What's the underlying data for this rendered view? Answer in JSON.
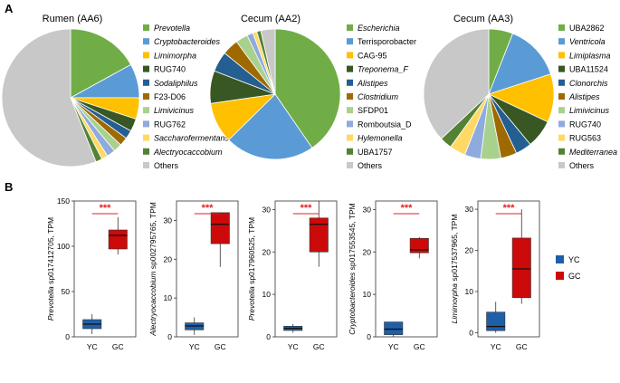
{
  "panels": {
    "a": "A",
    "b": "B"
  },
  "pies": [
    {
      "title": "Rumen (AA6)",
      "slices": [
        {
          "name": "Prevotella",
          "italic": true,
          "value": 17,
          "color": "#70ad47"
        },
        {
          "name": "Cryptobacteroides",
          "italic": true,
          "value": 8,
          "color": "#5b9bd5"
        },
        {
          "name": "Limimorpha",
          "italic": true,
          "value": 5,
          "color": "#ffc000"
        },
        {
          "name": "RUG740",
          "italic": false,
          "value": 3,
          "color": "#385723"
        },
        {
          "name": "Sodaliphilus",
          "italic": true,
          "value": 2,
          "color": "#255e91"
        },
        {
          "name": "F23-D06",
          "italic": false,
          "value": 2,
          "color": "#9e6a00"
        },
        {
          "name": "Limivicinus",
          "italic": true,
          "value": 2,
          "color": "#a9d18e"
        },
        {
          "name": "RUG762",
          "italic": false,
          "value": 2,
          "color": "#8faadc"
        },
        {
          "name": "Saccharofermentans",
          "italic": true,
          "value": 1.5,
          "color": "#ffd966"
        },
        {
          "name": "Alectryocaccobium",
          "italic": true,
          "value": 1.5,
          "color": "#548235"
        },
        {
          "name": "Others",
          "italic": false,
          "value": 56,
          "color": "#c8c8c8"
        }
      ]
    },
    {
      "title": "Cecum (AA2)",
      "slices": [
        {
          "name": "Escherichia",
          "italic": true,
          "value": 40,
          "color": "#70ad47"
        },
        {
          "name": "Terrisporobacter",
          "italic": false,
          "value": 22,
          "color": "#5b9bd5"
        },
        {
          "name": "CAG-95",
          "italic": false,
          "value": 10,
          "color": "#ffc000"
        },
        {
          "name": "Treponema_F",
          "italic": true,
          "value": 8,
          "color": "#385723"
        },
        {
          "name": "Alistipes",
          "italic": true,
          "value": 5,
          "color": "#255e91"
        },
        {
          "name": "Clostridium",
          "italic": true,
          "value": 4,
          "color": "#9e6a00"
        },
        {
          "name": "SFDP01",
          "italic": false,
          "value": 3,
          "color": "#a9d18e"
        },
        {
          "name": "Romboutsia_D",
          "italic": false,
          "value": 1.5,
          "color": "#8faadc"
        },
        {
          "name": "Hylemonella",
          "italic": true,
          "value": 1,
          "color": "#ffd966"
        },
        {
          "name": "UBA1757",
          "italic": false,
          "value": 1,
          "color": "#548235"
        },
        {
          "name": "Others",
          "italic": false,
          "value": 3.5,
          "color": "#c8c8c8"
        }
      ]
    },
    {
      "title": "Cecum (AA3)",
      "slices": [
        {
          "name": "UBA2862",
          "italic": false,
          "value": 6,
          "color": "#70ad47"
        },
        {
          "name": "Ventricola",
          "italic": true,
          "value": 14,
          "color": "#5b9bd5"
        },
        {
          "name": "Limiplasma",
          "italic": true,
          "value": 12,
          "color": "#ffc000"
        },
        {
          "name": "UBA11524",
          "italic": false,
          "value": 7,
          "color": "#385723"
        },
        {
          "name": "Clonorchis",
          "italic": true,
          "value": 4,
          "color": "#255e91"
        },
        {
          "name": "Alistipes",
          "italic": true,
          "value": 4,
          "color": "#9e6a00"
        },
        {
          "name": "Limivicinus",
          "italic": true,
          "value": 5,
          "color": "#a9d18e"
        },
        {
          "name": "RUG740",
          "italic": false,
          "value": 4,
          "color": "#8faadc"
        },
        {
          "name": "RUG563",
          "italic": false,
          "value": 4,
          "color": "#ffd966"
        },
        {
          "name": "Mediterranea",
          "italic": true,
          "value": 3,
          "color": "#548235"
        },
        {
          "name": "Others",
          "italic": false,
          "value": 37,
          "color": "#c8c8c8"
        }
      ]
    }
  ],
  "chart_data": [
    {
      "type": "box",
      "ylabel_italic": "Prevotella",
      "ylabel_rest": " sp017412705, TPM",
      "ylim": [
        0,
        150
      ],
      "ticks": [
        0,
        50,
        100,
        150
      ],
      "categories": [
        "YC",
        "GC"
      ],
      "significance": "***",
      "boxes": [
        {
          "group": "YC",
          "min": 3,
          "q1": 9,
          "median": 14,
          "q3": 19,
          "max": 25
        },
        {
          "group": "GC",
          "min": 91,
          "q1": 97,
          "median": 112,
          "q3": 118,
          "max": 132
        }
      ]
    },
    {
      "type": "box",
      "ylabel_italic": "Alectryocaccobium",
      "ylabel_rest": " sp002795765, TPM",
      "ylim": [
        0,
        35
      ],
      "ticks": [
        0,
        10,
        20,
        30
      ],
      "categories": [
        "YC",
        "GC"
      ],
      "significance": "***",
      "boxes": [
        {
          "group": "YC",
          "min": 0.5,
          "q1": 1.8,
          "median": 2.8,
          "q3": 3.6,
          "max": 5
        },
        {
          "group": "GC",
          "min": 18,
          "q1": 24,
          "median": 29,
          "q3": 32,
          "max": 32
        }
      ]
    },
    {
      "type": "box",
      "ylabel_italic": "Prevotella",
      "ylabel_rest": " sp017960525, TPM",
      "ylim": [
        0,
        32
      ],
      "ticks": [
        0,
        10,
        20,
        30
      ],
      "categories": [
        "YC",
        "GC"
      ],
      "significance": "***",
      "boxes": [
        {
          "group": "YC",
          "min": 1,
          "q1": 1.5,
          "median": 2,
          "q3": 2.5,
          "max": 3
        },
        {
          "group": "GC",
          "min": 16.5,
          "q1": 20,
          "median": 26.5,
          "q3": 28,
          "max": 32
        }
      ]
    },
    {
      "type": "box",
      "ylabel_italic": "Cryptobacteroides",
      "ylabel_rest": " sp017553545, TPM",
      "ylim": [
        0,
        32
      ],
      "ticks": [
        0,
        10,
        20,
        30
      ],
      "categories": [
        "YC",
        "GC"
      ],
      "significance": "***",
      "boxes": [
        {
          "group": "YC",
          "min": 0,
          "q1": 0.5,
          "median": 1.8,
          "q3": 3.5,
          "max": 3.5
        },
        {
          "group": "GC",
          "min": 18.5,
          "q1": 19.8,
          "median": 20.5,
          "q3": 23.2,
          "max": 23.5
        }
      ]
    },
    {
      "type": "box",
      "ylabel_italic": "Limimorpha",
      "ylabel_rest": " sp017537965, TPM",
      "ylim": [
        -1,
        32
      ],
      "ticks": [
        0,
        10,
        20,
        30
      ],
      "categories": [
        "YC",
        "GC"
      ],
      "significance": "***",
      "boxes": [
        {
          "group": "YC",
          "min": 0,
          "q1": 0.5,
          "median": 1.5,
          "q3": 5,
          "max": 7.5
        },
        {
          "group": "GC",
          "min": 7,
          "q1": 8.5,
          "median": 15.5,
          "q3": 23,
          "max": 30
        }
      ]
    }
  ],
  "legend_b": [
    {
      "label": "YC",
      "color": "#1f5fa8"
    },
    {
      "label": "GC",
      "color": "#cc0a0a"
    }
  ],
  "colors": {
    "yc": "#1f5fa8",
    "gc": "#cc0a0a",
    "stars": "#e02020"
  }
}
